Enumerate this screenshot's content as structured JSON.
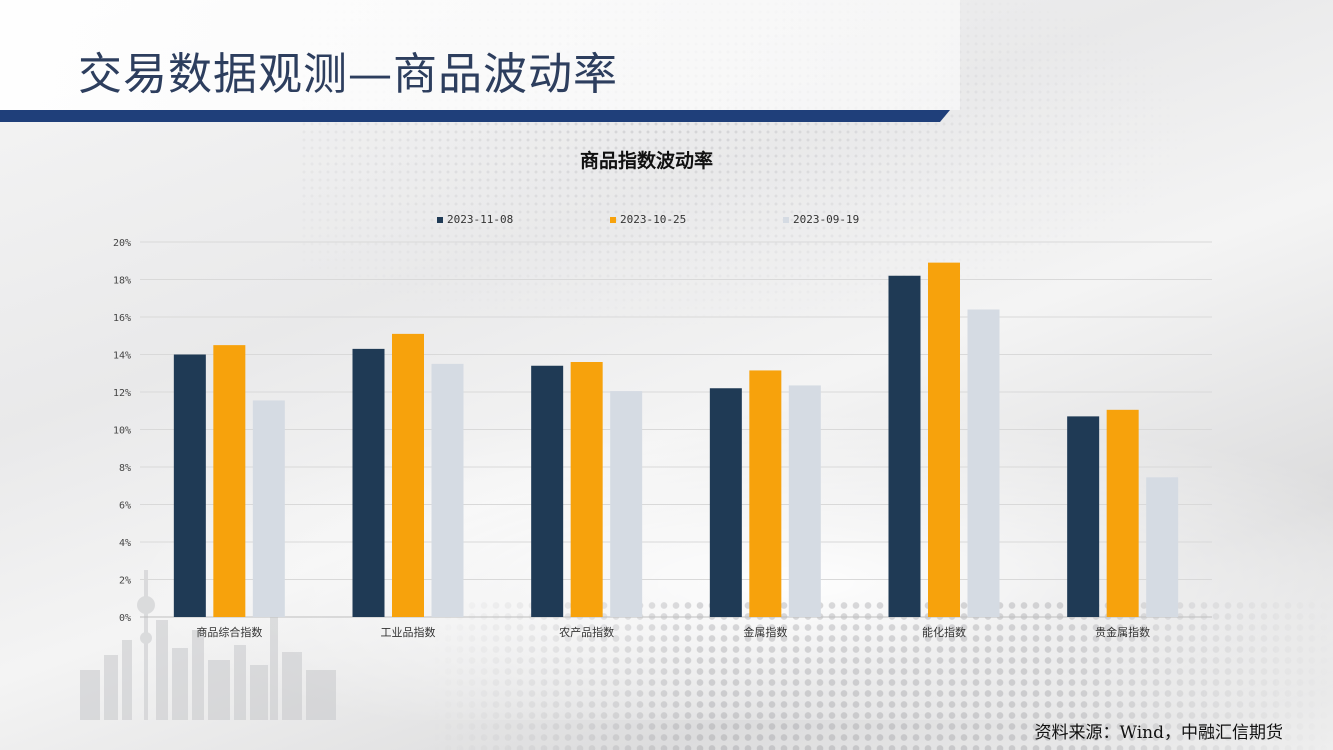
{
  "page": {
    "title": "交易数据观测—商品波动率",
    "source": "资料来源：Wind，中融汇信期货",
    "accent_color": "#1f3f7a"
  },
  "chart_data": {
    "type": "bar",
    "title": "商品指数波动率",
    "categories": [
      "商品综合指数",
      "工业品指数",
      "农产品指数",
      "金属指数",
      "能化指数",
      "贵金属指数"
    ],
    "series": [
      {
        "name": "2023-11-08",
        "color": "#1f3a55",
        "values": [
          14.0,
          14.3,
          13.4,
          12.2,
          18.2,
          10.7
        ]
      },
      {
        "name": "2023-10-25",
        "color": "#f7a20c",
        "values": [
          14.5,
          15.1,
          13.6,
          13.15,
          18.9,
          11.05
        ]
      },
      {
        "name": "2023-09-19",
        "color": "#d5dbe3",
        "values": [
          11.55,
          13.5,
          12.05,
          12.35,
          16.4,
          7.45
        ]
      }
    ],
    "ylim": [
      0,
      20
    ],
    "yticks": [
      0,
      2,
      4,
      6,
      8,
      10,
      12,
      14,
      16,
      18,
      20
    ],
    "ytick_labels": [
      "0%",
      "2%",
      "4%",
      "6%",
      "8%",
      "10%",
      "12%",
      "14%",
      "16%",
      "18%",
      "20%"
    ],
    "ylabel": "",
    "xlabel": "",
    "grid": true,
    "legend_position": "top"
  }
}
